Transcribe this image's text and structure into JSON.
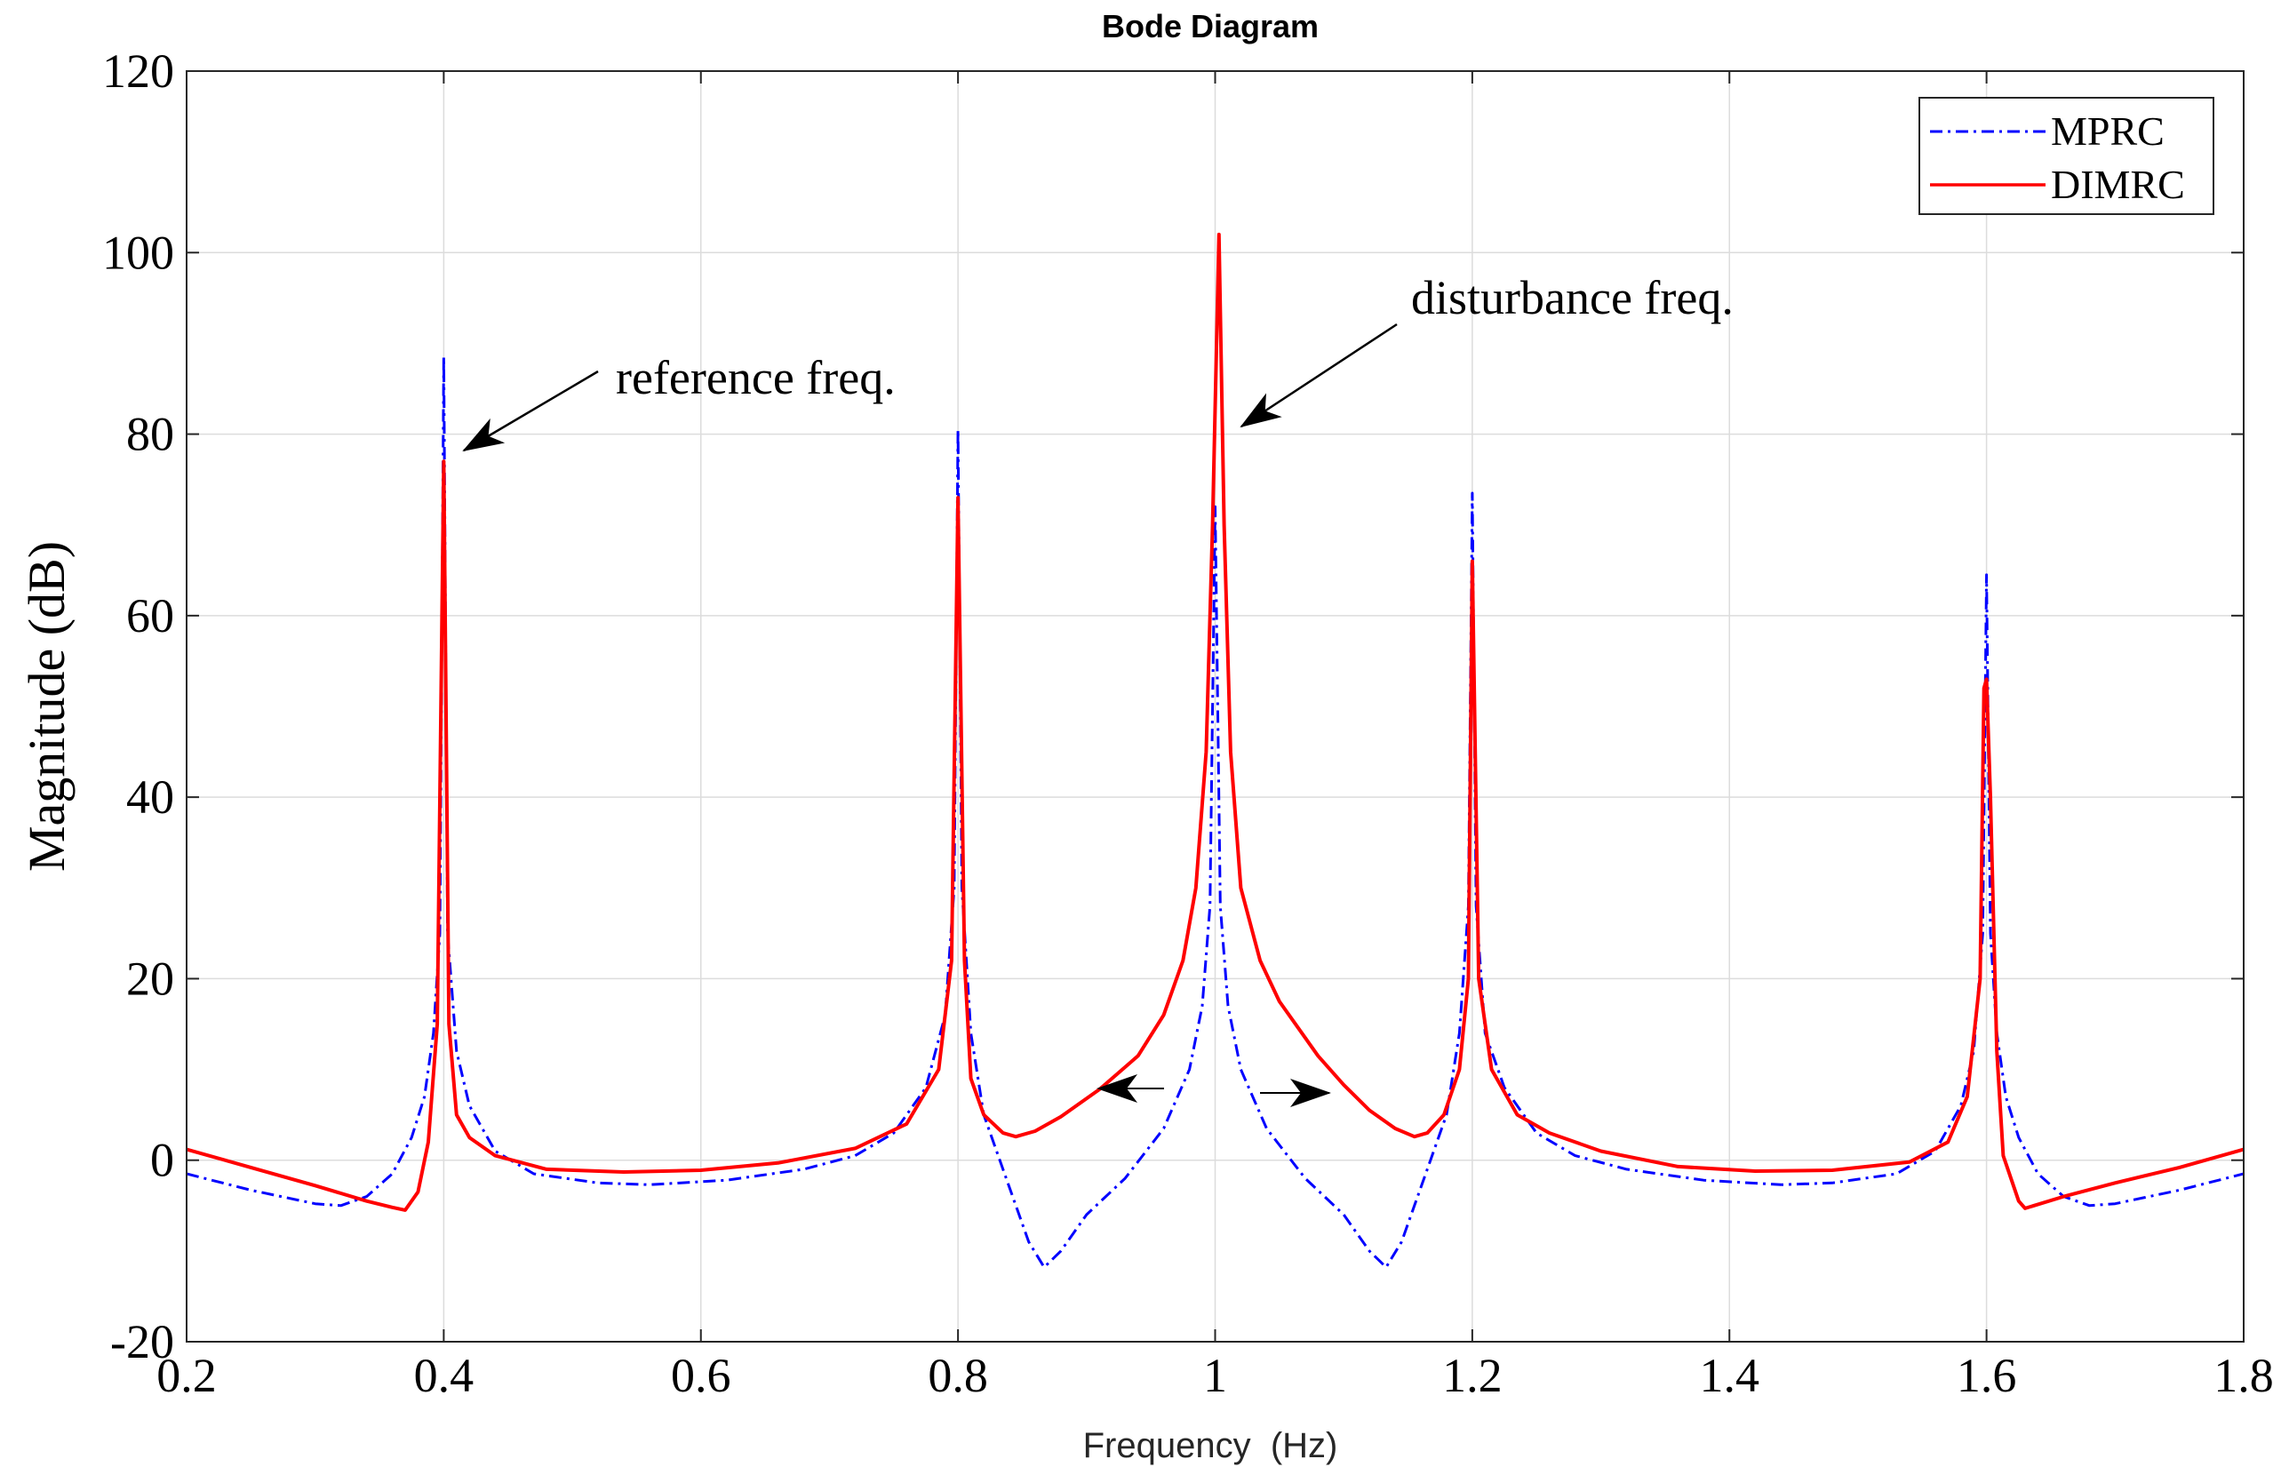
{
  "chart_data": {
    "type": "line",
    "title": "Bode Diagram",
    "xlabel": "Frequency  (Hz)",
    "ylabel": "Magnitude (dB)",
    "xlim": [
      0.2,
      1.8
    ],
    "ylim": [
      -20,
      120
    ],
    "xticks": [
      0.2,
      0.4,
      0.6,
      0.8,
      1.0,
      1.2,
      1.4,
      1.6,
      1.8
    ],
    "xtick_labels": [
      "0.2",
      "0.4",
      "0.6",
      "0.8",
      "1",
      "1.2",
      "1.4",
      "1.6",
      "1.8"
    ],
    "yticks": [
      -20,
      0,
      20,
      40,
      60,
      80,
      100,
      120
    ],
    "ytick_labels": [
      "-20",
      "0",
      "20",
      "40",
      "60",
      "80",
      "100",
      "120"
    ],
    "grid": true,
    "legend_position": "top-right",
    "series": [
      {
        "name": "MPRC",
        "color": "#0000ff",
        "style": "dashdot",
        "points": [
          [
            0.2,
            -1.5
          ],
          [
            0.25,
            -3.3
          ],
          [
            0.3,
            -4.8
          ],
          [
            0.32,
            -5.0
          ],
          [
            0.34,
            -4.0
          ],
          [
            0.36,
            -1.5
          ],
          [
            0.375,
            2.5
          ],
          [
            0.385,
            7.0
          ],
          [
            0.392,
            14.0
          ],
          [
            0.397,
            25.0
          ],
          [
            0.4,
            88.5
          ],
          [
            0.403,
            25.0
          ],
          [
            0.41,
            12.0
          ],
          [
            0.42,
            6.0
          ],
          [
            0.44,
            1.0
          ],
          [
            0.47,
            -1.5
          ],
          [
            0.52,
            -2.5
          ],
          [
            0.56,
            -2.7
          ],
          [
            0.62,
            -2.2
          ],
          [
            0.68,
            -1.0
          ],
          [
            0.72,
            0.5
          ],
          [
            0.75,
            3.0
          ],
          [
            0.775,
            8.0
          ],
          [
            0.79,
            16.0
          ],
          [
            0.797,
            30.0
          ],
          [
            0.8,
            80.5
          ],
          [
            0.803,
            30.0
          ],
          [
            0.81,
            14.0
          ],
          [
            0.82,
            5.0
          ],
          [
            0.84,
            -3.0
          ],
          [
            0.855,
            -9.0
          ],
          [
            0.867,
            -11.8
          ],
          [
            0.88,
            -10.0
          ],
          [
            0.9,
            -6.0
          ],
          [
            0.93,
            -2.0
          ],
          [
            0.96,
            3.5
          ],
          [
            0.98,
            10.0
          ],
          [
            0.99,
            17.0
          ],
          [
            0.996,
            28.0
          ],
          [
            1.0,
            72.0
          ],
          [
            1.004,
            28.0
          ],
          [
            1.01,
            17.0
          ],
          [
            1.02,
            10.0
          ],
          [
            1.04,
            3.5
          ],
          [
            1.07,
            -2.0
          ],
          [
            1.1,
            -6.0
          ],
          [
            1.12,
            -10.0
          ],
          [
            1.133,
            -11.8
          ],
          [
            1.145,
            -9.0
          ],
          [
            1.16,
            -3.0
          ],
          [
            1.18,
            5.0
          ],
          [
            1.19,
            14.0
          ],
          [
            1.197,
            28.0
          ],
          [
            1.2,
            73.5
          ],
          [
            1.203,
            28.0
          ],
          [
            1.21,
            14.0
          ],
          [
            1.225,
            8.0
          ],
          [
            1.25,
            3.0
          ],
          [
            1.28,
            0.5
          ],
          [
            1.32,
            -1.0
          ],
          [
            1.38,
            -2.2
          ],
          [
            1.44,
            -2.7
          ],
          [
            1.48,
            -2.5
          ],
          [
            1.53,
            -1.5
          ],
          [
            1.56,
            1.0
          ],
          [
            1.58,
            6.0
          ],
          [
            1.59,
            12.0
          ],
          [
            1.597,
            25.0
          ],
          [
            1.6,
            64.5
          ],
          [
            1.603,
            25.0
          ],
          [
            1.608,
            14.0
          ],
          [
            1.615,
            7.0
          ],
          [
            1.625,
            2.5
          ],
          [
            1.64,
            -1.5
          ],
          [
            1.66,
            -4.0
          ],
          [
            1.68,
            -5.0
          ],
          [
            1.7,
            -4.8
          ],
          [
            1.75,
            -3.3
          ],
          [
            1.8,
            -1.5
          ]
        ]
      },
      {
        "name": "DIMRC",
        "color": "#ff0000",
        "style": "solid",
        "points": [
          [
            0.2,
            1.2
          ],
          [
            0.25,
            -0.8
          ],
          [
            0.3,
            -2.8
          ],
          [
            0.34,
            -4.5
          ],
          [
            0.36,
            -5.2
          ],
          [
            0.37,
            -5.5
          ],
          [
            0.38,
            -3.5
          ],
          [
            0.388,
            2.0
          ],
          [
            0.395,
            15.0
          ],
          [
            0.4,
            77.0
          ],
          [
            0.404,
            15.0
          ],
          [
            0.41,
            5.0
          ],
          [
            0.42,
            2.5
          ],
          [
            0.44,
            0.5
          ],
          [
            0.48,
            -1.0
          ],
          [
            0.54,
            -1.3
          ],
          [
            0.6,
            -1.1
          ],
          [
            0.66,
            -0.3
          ],
          [
            0.72,
            1.3
          ],
          [
            0.76,
            4.0
          ],
          [
            0.785,
            10.0
          ],
          [
            0.795,
            22.0
          ],
          [
            0.8,
            73.0
          ],
          [
            0.805,
            22.0
          ],
          [
            0.81,
            9.0
          ],
          [
            0.82,
            5.0
          ],
          [
            0.835,
            3.0
          ],
          [
            0.845,
            2.6
          ],
          [
            0.86,
            3.2
          ],
          [
            0.88,
            4.8
          ],
          [
            0.91,
            7.8
          ],
          [
            0.94,
            11.5
          ],
          [
            0.96,
            16.0
          ],
          [
            0.975,
            22.0
          ],
          [
            0.985,
            30.0
          ],
          [
            0.993,
            45.0
          ],
          [
            0.998,
            70.0
          ],
          [
            1.003,
            102.0
          ],
          [
            1.007,
            70.0
          ],
          [
            1.012,
            45.0
          ],
          [
            1.02,
            30.0
          ],
          [
            1.035,
            22.0
          ],
          [
            1.05,
            17.5
          ],
          [
            1.08,
            11.5
          ],
          [
            1.1,
            8.3
          ],
          [
            1.12,
            5.5
          ],
          [
            1.14,
            3.5
          ],
          [
            1.155,
            2.6
          ],
          [
            1.165,
            3.0
          ],
          [
            1.178,
            5.0
          ],
          [
            1.19,
            10.0
          ],
          [
            1.197,
            20.0
          ],
          [
            1.2,
            66.0
          ],
          [
            1.205,
            20.0
          ],
          [
            1.215,
            10.0
          ],
          [
            1.235,
            5.0
          ],
          [
            1.26,
            3.0
          ],
          [
            1.3,
            1.0
          ],
          [
            1.36,
            -0.7
          ],
          [
            1.42,
            -1.2
          ],
          [
            1.48,
            -1.1
          ],
          [
            1.54,
            -0.2
          ],
          [
            1.57,
            2.0
          ],
          [
            1.585,
            7.0
          ],
          [
            1.595,
            20.0
          ],
          [
            1.598,
            52.0
          ],
          [
            1.6,
            53.0
          ],
          [
            1.603,
            40.0
          ],
          [
            1.608,
            12.0
          ],
          [
            1.613,
            0.5
          ],
          [
            1.625,
            -4.5
          ],
          [
            1.63,
            -5.3
          ],
          [
            1.66,
            -4.0
          ],
          [
            1.7,
            -2.5
          ],
          [
            1.75,
            -0.8
          ],
          [
            1.8,
            1.2
          ]
        ]
      }
    ],
    "annotations": [
      {
        "text": "reference freq.",
        "arrow_to": [
          0.4,
          77.5
        ]
      },
      {
        "text": "disturbance freq.",
        "arrow_to": [
          1.003,
          81
        ]
      }
    ],
    "spread_arrows": [
      {
        "from": [
          0.98,
          8.0
        ],
        "to": [
          0.925,
          8.0
        ]
      },
      {
        "from": [
          1.04,
          7.5
        ],
        "to": [
          1.09,
          7.5
        ]
      }
    ]
  }
}
